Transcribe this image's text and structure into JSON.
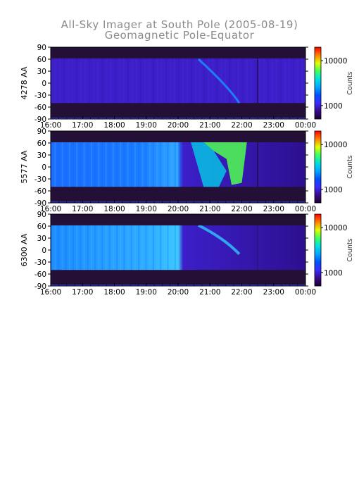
{
  "title": "All-Sky Imager at South Pole (2005-08-19)",
  "subtitle": "Geomagnetic Pole-Equator",
  "chart_data": [
    {
      "type": "heatmap",
      "ylabel": "4278 AA",
      "colorbar_label": "Counts",
      "x_ticks": [
        "16:00",
        "17:00",
        "18:00",
        "19:00",
        "20:00",
        "21:00",
        "22:00",
        "23:00",
        "00:00"
      ],
      "y_ticks": [
        90,
        60,
        30,
        0,
        -30,
        -60,
        -90
      ],
      "ylim": [
        -90,
        90
      ],
      "colorbar_ticks": [
        1000,
        10000
      ],
      "colorbar_scale": "log",
      "colorscale": [
        "#1a0033",
        "#3a0a8a",
        "#3a2aff",
        "#0050ff",
        "#00a8ff",
        "#00e0e0",
        "#40ff60",
        "#e0ff00",
        "#ff8000",
        "#ff0000"
      ],
      "intensity_level": 0.3,
      "features": "faint pole-ward arc near 21:00-22:00"
    },
    {
      "type": "heatmap",
      "ylabel": "5577 AA",
      "colorbar_label": "Counts",
      "x_ticks": [
        "16:00",
        "17:00",
        "18:00",
        "19:00",
        "20:00",
        "21:00",
        "22:00",
        "23:00",
        "00:00"
      ],
      "y_ticks": [
        90,
        60,
        30,
        0,
        -30,
        -60,
        -90
      ],
      "ylim": [
        -90,
        90
      ],
      "colorbar_ticks": [
        1000,
        10000
      ],
      "colorbar_scale": "log",
      "colorscale": [
        "#1a0033",
        "#3a0a8a",
        "#3a2aff",
        "#0050ff",
        "#00a8ff",
        "#00e0e0",
        "#40ff60",
        "#e0ff00",
        "#ff8000",
        "#ff0000"
      ],
      "intensity_level": 0.5,
      "features": "bright green auroral band 21:00-22:00"
    },
    {
      "type": "heatmap",
      "ylabel": "6300 AA",
      "colorbar_label": "Counts",
      "x_ticks": [
        "16:00",
        "17:00",
        "18:00",
        "19:00",
        "20:00",
        "21:00",
        "22:00",
        "23:00",
        "00:00"
      ],
      "y_ticks": [
        90,
        60,
        30,
        0,
        -30,
        -60,
        -90
      ],
      "ylim": [
        -90,
        90
      ],
      "colorbar_ticks": [
        1000,
        10000
      ],
      "colorbar_scale": "log",
      "colorscale": [
        "#1a0033",
        "#3a0a8a",
        "#3a2aff",
        "#0050ff",
        "#00a8ff",
        "#00e0e0",
        "#40ff60",
        "#e0ff00",
        "#ff8000",
        "#ff0000"
      ],
      "intensity_level": 0.55,
      "features": "diffuse cyan emission before 20:00"
    }
  ]
}
